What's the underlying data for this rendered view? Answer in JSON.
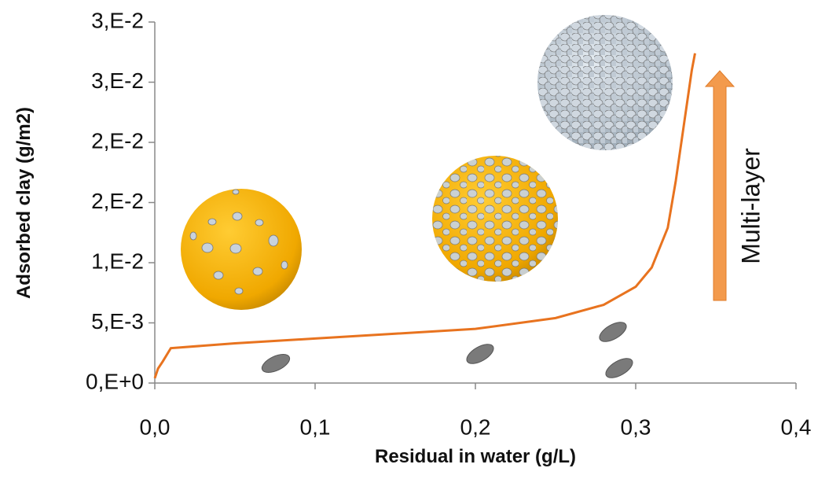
{
  "chart_data": {
    "type": "line",
    "xlabel": "Residual in water (g/L)",
    "ylabel": "Adsorbed clay  (g/m2)",
    "annotation": "Multi-layer",
    "xlim": [
      0,
      0.4
    ],
    "ylim": [
      0,
      0.03
    ],
    "xticks": [
      {
        "value": 0,
        "label": "0,0"
      },
      {
        "value": 0.1,
        "label": "0,1"
      },
      {
        "value": 0.2,
        "label": "0,2"
      },
      {
        "value": 0.3,
        "label": "0,3"
      },
      {
        "value": 0.4,
        "label": "0,4"
      }
    ],
    "yticks": [
      {
        "value": 0,
        "label": "0,E+0"
      },
      {
        "value": 0.005,
        "label": "5,E-3"
      },
      {
        "value": 0.01,
        "label": "1,E-2"
      },
      {
        "value": 0.015,
        "label": "2,E-2"
      },
      {
        "value": 0.02,
        "label": "2,E-2"
      },
      {
        "value": 0.025,
        "label": "3,E-2"
      },
      {
        "value": 0.03,
        "label": "3,E-2"
      }
    ],
    "series": [
      {
        "color": "#e8731f",
        "x": [
          0,
          0.002,
          0.005,
          0.01,
          0.05,
          0.1,
          0.15,
          0.2,
          0.25,
          0.28,
          0.3,
          0.31,
          0.32,
          0.325,
          0.33,
          0.335,
          0.337
        ],
        "values": [
          0.0004,
          0.0012,
          0.0018,
          0.0029,
          0.0033,
          0.0037,
          0.0041,
          0.0045,
          0.0054,
          0.0065,
          0.008,
          0.0096,
          0.0129,
          0.0168,
          0.0214,
          0.026,
          0.0274
        ]
      }
    ]
  }
}
